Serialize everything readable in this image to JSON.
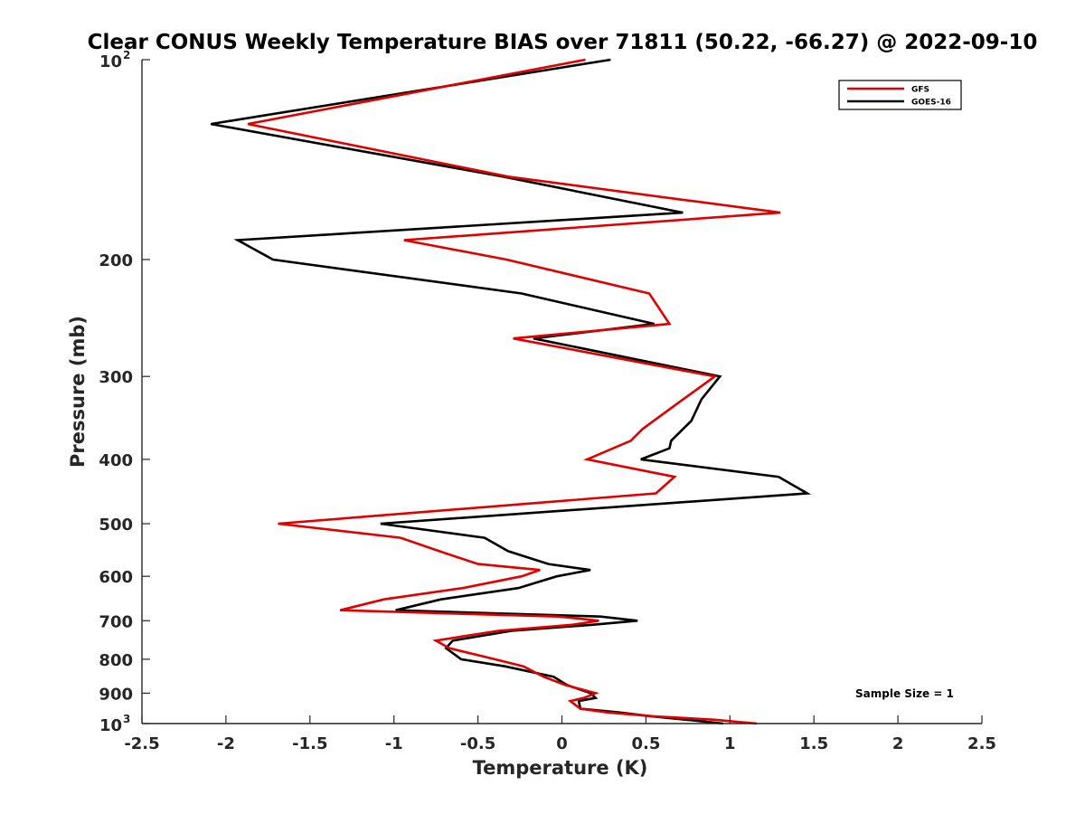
{
  "chart_data": {
    "type": "line",
    "title": "Clear CONUS Weekly Temperature BIAS over 71811 (50.22, -66.27) @ 2022-09-10",
    "xlabel": "Temperature (K)",
    "ylabel": "Pressure (mb)",
    "xlim": [
      -2.5,
      2.5
    ],
    "ylim": [
      100,
      1000
    ],
    "y_scale": "log",
    "y_reversed": true,
    "grid": false,
    "x_ticks": [
      -2.5,
      -2,
      -1.5,
      -1,
      -0.5,
      0,
      0.5,
      1,
      1.5,
      2,
      2.5
    ],
    "x_tick_labels": [
      "-2.5",
      "-2",
      "-1.5",
      "-1",
      "-0.5",
      "0",
      "0.5",
      "1",
      "1.5",
      "2",
      "2.5"
    ],
    "y_ticks": [
      100,
      200,
      300,
      400,
      500,
      600,
      700,
      800,
      900,
      1000
    ],
    "y_tick_labels": [
      {
        "base": "10",
        "exp": "2"
      },
      {
        "base": "200",
        "exp": ""
      },
      {
        "base": "300",
        "exp": ""
      },
      {
        "base": "400",
        "exp": ""
      },
      {
        "base": "500",
        "exp": ""
      },
      {
        "base": "600",
        "exp": ""
      },
      {
        "base": "700",
        "exp": ""
      },
      {
        "base": "800",
        "exp": ""
      },
      {
        "base": "900",
        "exp": ""
      },
      {
        "base": "10",
        "exp": "3"
      }
    ],
    "legend_position": "top-right",
    "annotation": "Sample Size = 1",
    "series": [
      {
        "name": "GFS",
        "color": "#e00000",
        "points": [
          [
            0.14,
            100
          ],
          [
            -1.87,
            125
          ],
          [
            -0.32,
            150
          ],
          [
            1.3,
            170
          ],
          [
            -0.94,
            187
          ],
          [
            -0.33,
            200
          ],
          [
            0.52,
            225
          ],
          [
            0.64,
            250
          ],
          [
            -0.29,
            263
          ],
          [
            0.91,
            300
          ],
          [
            0.72,
            325
          ],
          [
            0.48,
            360
          ],
          [
            0.41,
            375
          ],
          [
            0.15,
            400
          ],
          [
            0.67,
            425
          ],
          [
            0.56,
            450
          ],
          [
            -1.69,
            500
          ],
          [
            -0.96,
            525
          ],
          [
            -0.73,
            550
          ],
          [
            -0.5,
            575
          ],
          [
            -0.13,
            587
          ],
          [
            -0.24,
            600
          ],
          [
            -0.59,
            625
          ],
          [
            -1.06,
            650
          ],
          [
            -1.32,
            675
          ],
          [
            -0.02,
            690
          ],
          [
            0.22,
            700
          ],
          [
            0.06,
            710
          ],
          [
            -0.38,
            725
          ],
          [
            -0.75,
            750
          ],
          [
            -0.67,
            770
          ],
          [
            -0.4,
            800
          ],
          [
            -0.23,
            820
          ],
          [
            -0.11,
            850
          ],
          [
            0.02,
            875
          ],
          [
            0.2,
            900
          ],
          [
            0.13,
            915
          ],
          [
            0.05,
            925
          ],
          [
            0.11,
            950
          ],
          [
            0.27,
            962
          ],
          [
            0.54,
            975
          ],
          [
            0.91,
            987
          ],
          [
            1.16,
            1000
          ]
        ]
      },
      {
        "name": "GOES-16",
        "color": "#000000",
        "points": [
          [
            0.29,
            100
          ],
          [
            -2.09,
            125
          ],
          [
            -0.35,
            150
          ],
          [
            0.72,
            170
          ],
          [
            -1.93,
            187
          ],
          [
            -1.72,
            200
          ],
          [
            -0.24,
            225
          ],
          [
            0.55,
            250
          ],
          [
            -0.17,
            263
          ],
          [
            0.94,
            300
          ],
          [
            0.83,
            325
          ],
          [
            0.77,
            350
          ],
          [
            0.65,
            375
          ],
          [
            0.64,
            385
          ],
          [
            0.47,
            400
          ],
          [
            1.29,
            425
          ],
          [
            1.46,
            450
          ],
          [
            -1.08,
            500
          ],
          [
            -0.46,
            525
          ],
          [
            -0.32,
            550
          ],
          [
            -0.08,
            575
          ],
          [
            0.17,
            587
          ],
          [
            -0.03,
            600
          ],
          [
            -0.26,
            625
          ],
          [
            -0.72,
            650
          ],
          [
            -0.99,
            675
          ],
          [
            0.23,
            690
          ],
          [
            0.45,
            700
          ],
          [
            0.18,
            710
          ],
          [
            -0.3,
            725
          ],
          [
            -0.65,
            750
          ],
          [
            -0.69,
            770
          ],
          [
            -0.6,
            800
          ],
          [
            -0.34,
            820
          ],
          [
            -0.05,
            850
          ],
          [
            0.03,
            875
          ],
          [
            0.17,
            900
          ],
          [
            0.2,
            915
          ],
          [
            0.1,
            925
          ],
          [
            0.11,
            950
          ],
          [
            0.34,
            962
          ],
          [
            0.53,
            975
          ],
          [
            0.74,
            987
          ],
          [
            0.96,
            1000
          ]
        ]
      }
    ]
  }
}
